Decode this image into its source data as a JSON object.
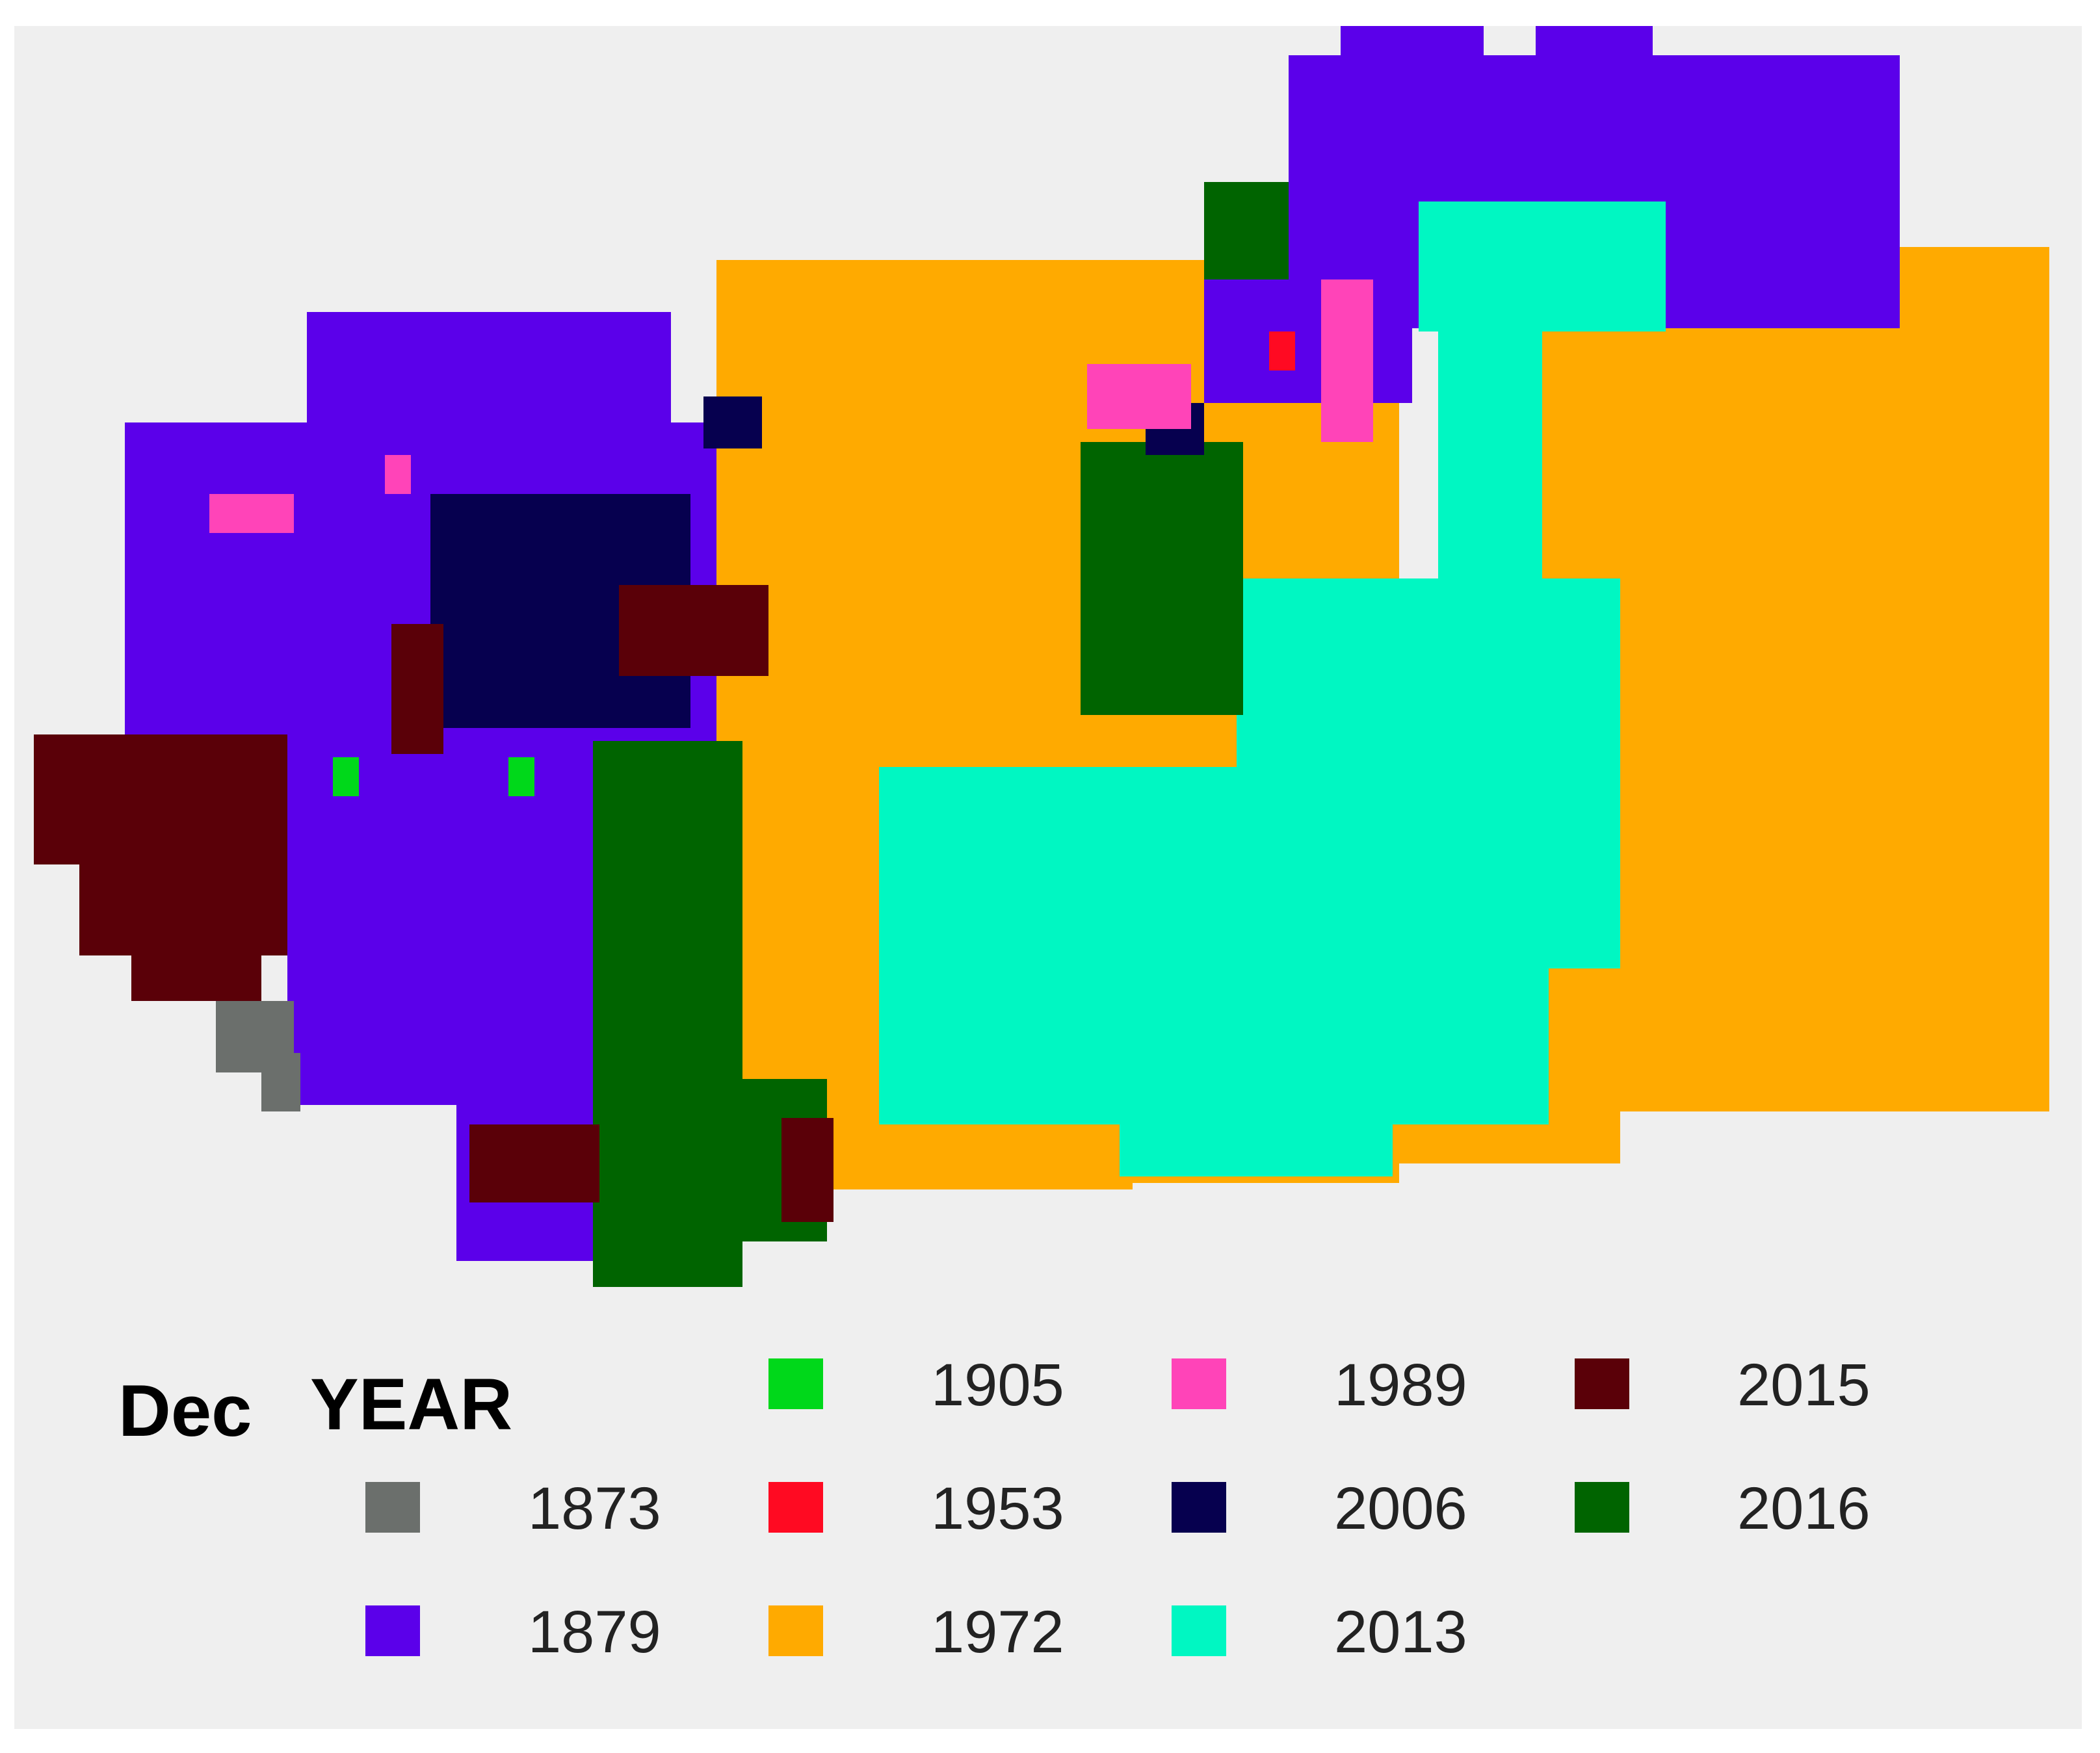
{
  "legend": {
    "title_month": "Dec",
    "title_field": "YEAR",
    "items": [
      {
        "year": "1873",
        "color": "#6b6f6c"
      },
      {
        "year": "1879",
        "color": "#5b00ea"
      },
      {
        "year": "1905",
        "color": "#00d81a"
      },
      {
        "year": "1953",
        "color": "#ff0a22"
      },
      {
        "year": "1972",
        "color": "#ffaa00"
      },
      {
        "year": "1989",
        "color": "#ff44b8"
      },
      {
        "year": "2006",
        "color": "#06004f"
      },
      {
        "year": "2013",
        "color": "#00f7c2"
      },
      {
        "year": "2015",
        "color": "#5a0008"
      },
      {
        "year": "2016",
        "color": "#006400"
      }
    ]
  }
}
